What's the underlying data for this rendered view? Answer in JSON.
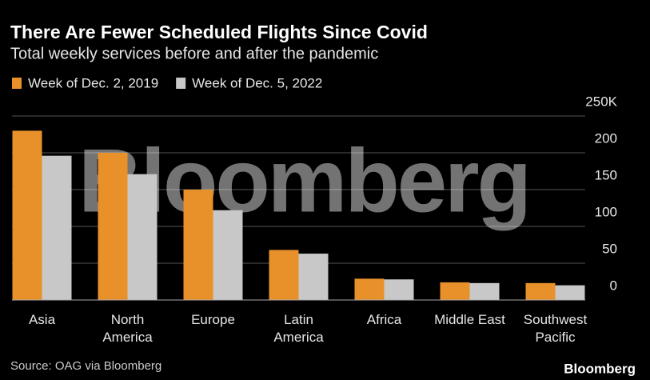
{
  "chart_data": {
    "type": "bar",
    "title": "There Are Fewer Scheduled Flights Since Covid",
    "subtitle": "Total weekly services before and after the pandemic",
    "categories": [
      "Asia",
      "North America",
      "Europe",
      "Latin America",
      "Africa",
      "Middle East",
      "Southwest Pacific"
    ],
    "series": [
      {
        "name": "Week of Dec. 2, 2019",
        "color": "#e8912a",
        "values": [
          230,
          200,
          150,
          68,
          29,
          24,
          23
        ]
      },
      {
        "name": "Week of Dec. 5, 2022",
        "color": "#c8c8c8",
        "values": [
          196,
          171,
          122,
          63,
          28,
          23,
          20
        ]
      }
    ],
    "ylim": [
      0,
      250
    ],
    "yticks": [
      0,
      50,
      100,
      150,
      200,
      {
        "value": 250,
        "label": "250K"
      }
    ],
    "grid": true,
    "source": "Source: OAG via Bloomberg",
    "watermark": "Bloomberg",
    "logo": "Bloomberg"
  }
}
